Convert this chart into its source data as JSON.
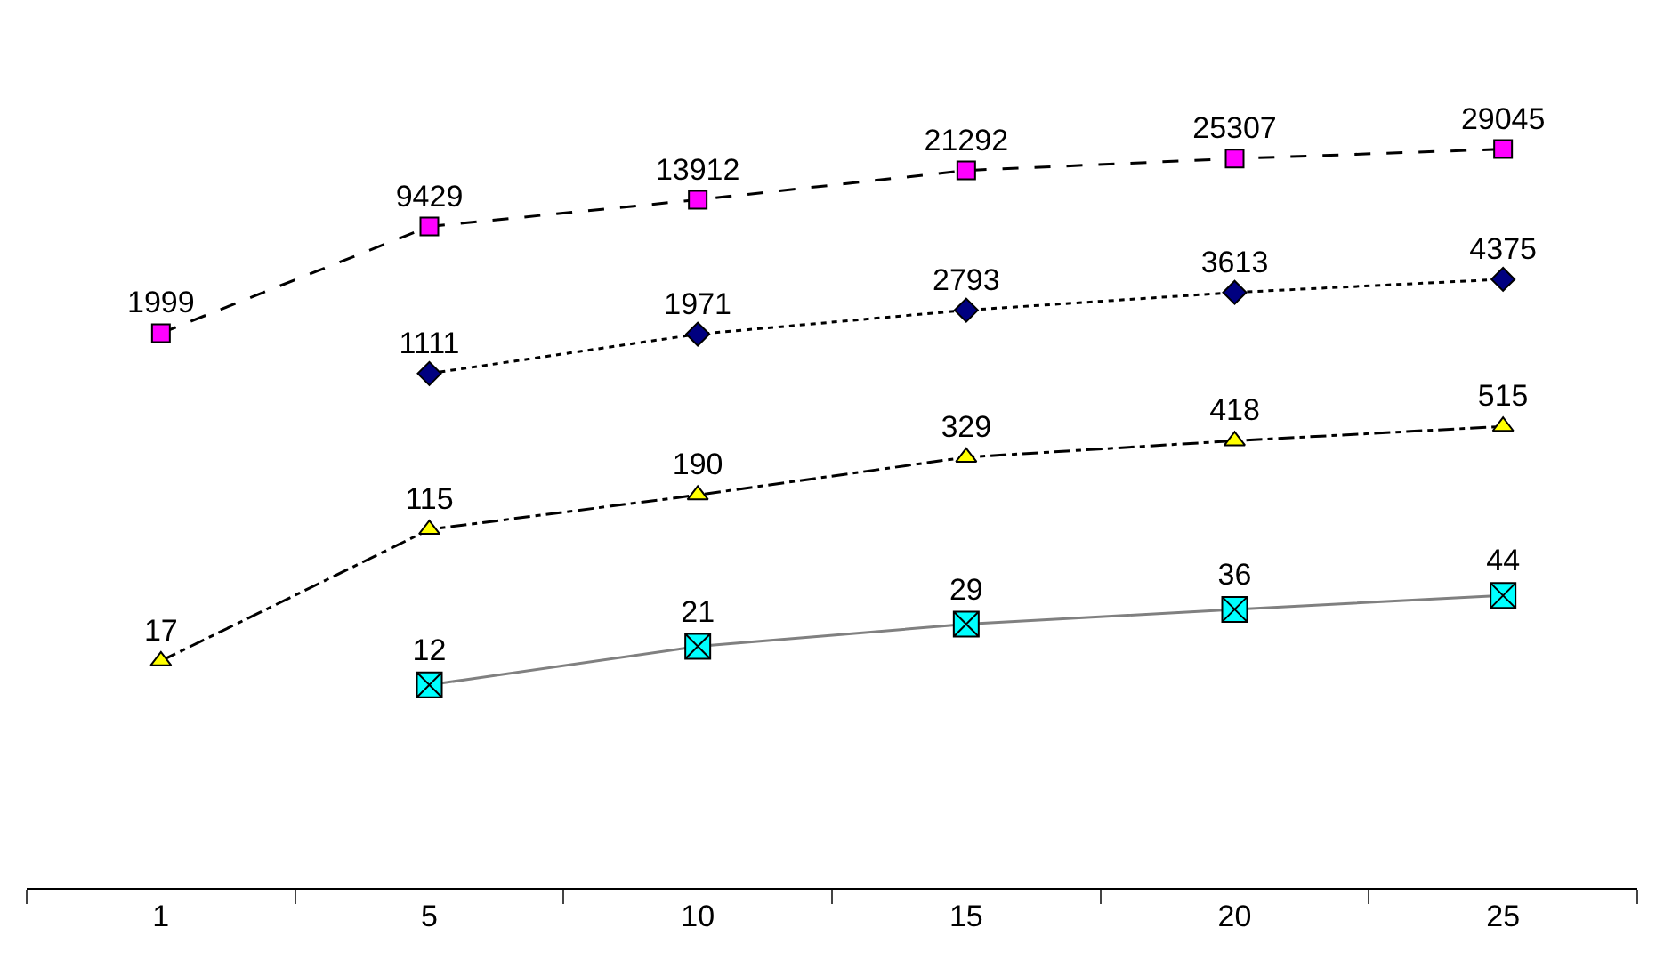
{
  "chart_data": {
    "type": "line",
    "categories": [
      "1",
      "5",
      "10",
      "15",
      "20",
      "25"
    ],
    "series": [
      {
        "color": "#ff00ff",
        "marker": "square",
        "line_style": "dashed",
        "values": [
          1999,
          9429,
          13912,
          21292,
          25307,
          29045
        ]
      },
      {
        "color": "#000080",
        "marker": "diamond",
        "line_style": "dotted",
        "values": [
          null,
          1111,
          1971,
          2793,
          3613,
          4375
        ]
      },
      {
        "color": "#ffff00",
        "marker": "triangle",
        "line_style": "dashdot",
        "values": [
          17,
          115,
          190,
          329,
          418,
          515
        ]
      },
      {
        "color": "#00ffff",
        "marker": "cross",
        "line_style": "solid",
        "values": [
          null,
          12,
          21,
          29,
          36,
          44
        ]
      }
    ],
    "log": true,
    "tick_labels": "x",
    "data_labels": true
  }
}
